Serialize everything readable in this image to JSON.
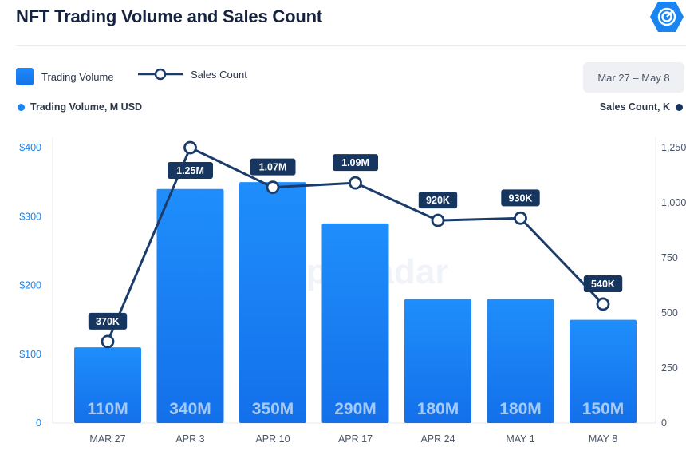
{
  "header": {
    "title": "NFT Trading Volume and Sales Count",
    "logo_icon": "dappradar-logo-icon"
  },
  "legend": {
    "volume_label": "Trading Volume",
    "count_label": "Sales Count"
  },
  "filter": {
    "date_range": "Mar 27 – May 8"
  },
  "axes": {
    "left_title": "Trading Volume, M USD",
    "right_title": "Sales Count, K"
  },
  "colors": {
    "bar_top": "#1f8efc",
    "bar_bottom": "#1370ea",
    "line": "#1b3c6b",
    "badge": "#17365f",
    "left_axis_text": "#1a84f0"
  },
  "watermark": "DappRadar",
  "chart_data": {
    "type": "bar",
    "categories": [
      "MAR 27",
      "APR 3",
      "APR 10",
      "APR 17",
      "APR 24",
      "MAY 1",
      "MAY 8"
    ],
    "series": [
      {
        "name": "Trading Volume",
        "type": "bar",
        "axis": "left",
        "values": [
          110,
          340,
          350,
          290,
          180,
          180,
          150
        ],
        "labels": [
          "110M",
          "340M",
          "350M",
          "290M",
          "180M",
          "180M",
          "150M"
        ]
      },
      {
        "name": "Sales Count",
        "type": "line",
        "axis": "right",
        "values": [
          370,
          1250,
          1070,
          1090,
          920,
          930,
          540
        ],
        "labels": [
          "370K",
          "1.25M",
          "1.07M",
          "1.09M",
          "920K",
          "930K",
          "540K"
        ]
      }
    ],
    "ylim_left": [
      0,
      400
    ],
    "yticks_left": [
      "0",
      "$100",
      "$200",
      "$300",
      "$400"
    ],
    "ylim_right": [
      0,
      1250
    ],
    "yticks_right": [
      "0",
      "250",
      "500",
      "750",
      "1,000",
      "1,250"
    ],
    "grid": false,
    "legend_position": "top-left"
  }
}
